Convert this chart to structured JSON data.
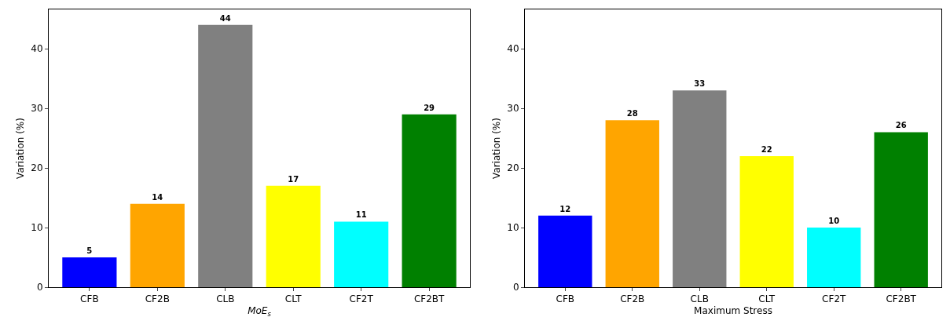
{
  "chart_data": [
    {
      "type": "bar",
      "categories": [
        "CFB",
        "CF2B",
        "CLB",
        "CLT",
        "CF2T",
        "CF2BT"
      ],
      "values": [
        5,
        14,
        44,
        17,
        11,
        29
      ],
      "colors": [
        "#0000ff",
        "#ffa500",
        "#808080",
        "#ffff00",
        "#00ffff",
        "#008000"
      ],
      "data_labels": true,
      "xlabel": "MoE$_{s}$",
      "ylabel": "Variation (%)",
      "ylim": [
        0,
        46.6
      ],
      "yticks": [
        0,
        10,
        20,
        30,
        40
      ],
      "grid": false,
      "legend": false
    },
    {
      "type": "bar",
      "categories": [
        "CFB",
        "CF2B",
        "CLB",
        "CLT",
        "CF2T",
        "CF2BT"
      ],
      "values": [
        12,
        28,
        33,
        22,
        10,
        26
      ],
      "colors": [
        "#0000ff",
        "#ffa500",
        "#808080",
        "#ffff00",
        "#00ffff",
        "#008000"
      ],
      "data_labels": true,
      "xlabel": "Maximum Stress",
      "ylabel": "Variation (%)",
      "ylim": [
        0,
        46.6
      ],
      "yticks": [
        0,
        10,
        20,
        30,
        40
      ],
      "grid": false,
      "legend": false
    }
  ]
}
